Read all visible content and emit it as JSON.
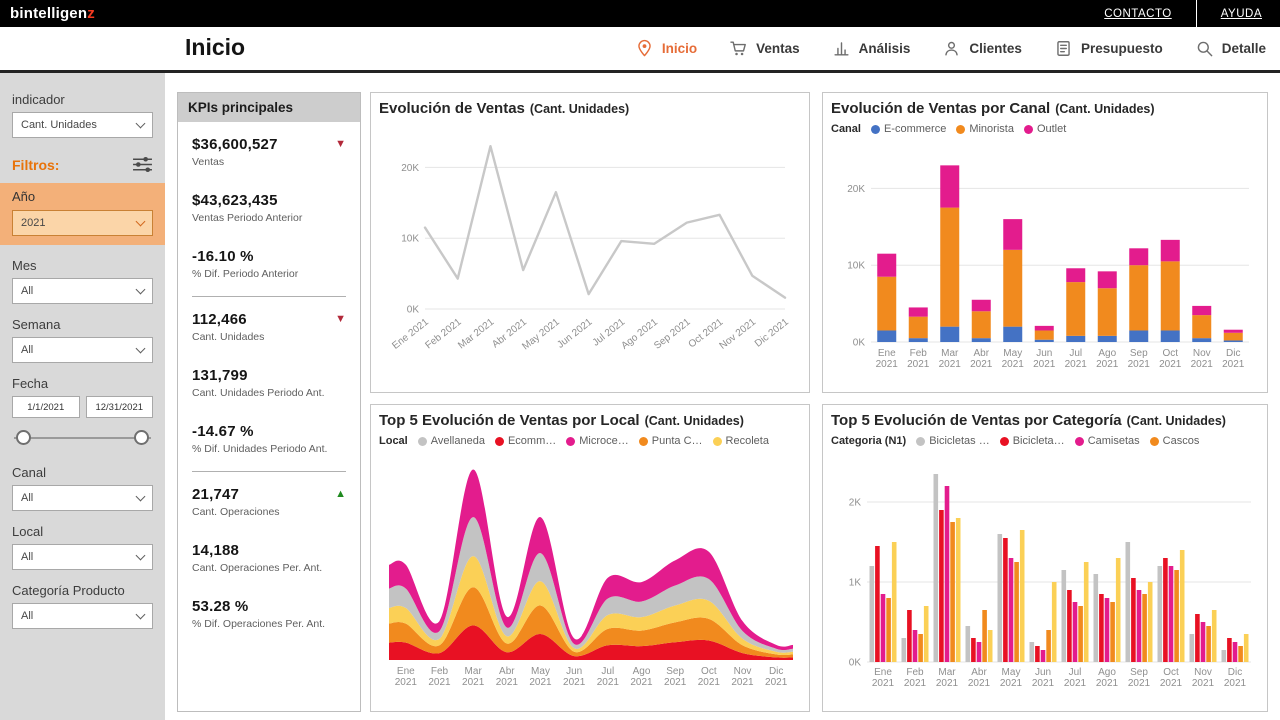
{
  "topbar": {
    "logo_b": "b",
    "logo_mid": "intelligen",
    "logo_z": "z",
    "contact": "CONTACTO",
    "help": "AYUDA"
  },
  "header": {
    "title": "Inicio",
    "nav": [
      {
        "label": "Inicio",
        "icon": "location-pin",
        "active": true
      },
      {
        "label": "Ventas",
        "icon": "cart",
        "active": false
      },
      {
        "label": "Análisis",
        "icon": "bar-chart",
        "active": false
      },
      {
        "label": "Clientes",
        "icon": "person",
        "active": false
      },
      {
        "label": "Presupuesto",
        "icon": "clipboard",
        "active": false
      },
      {
        "label": "Detalle",
        "icon": "search",
        "active": false
      }
    ]
  },
  "sidebar": {
    "indicator_label": "indicador",
    "indicator_value": "Cant. Unidades",
    "filters_title": "Filtros:",
    "year_label": "Año",
    "year_value": "2021",
    "month_label": "Mes",
    "month_value": "All",
    "week_label": "Semana",
    "week_value": "All",
    "date_label": "Fecha",
    "date_from": "1/1/2021",
    "date_to": "12/31/2021",
    "channel_label": "Canal",
    "channel_value": "All",
    "local_label": "Local",
    "local_value": "All",
    "category_label": "Categoría Producto",
    "category_value": "All"
  },
  "kpis": {
    "header": "KPIs principales",
    "items": [
      {
        "value": "$36,600,527",
        "label": "Ventas",
        "arrow": "down"
      },
      {
        "value": "$43,623,435",
        "label": "Ventas Periodo Anterior"
      },
      {
        "value": "-16.10 %",
        "label": "% Dif. Periodo Anterior",
        "divider_after": true
      },
      {
        "value": "112,466",
        "label": "Cant. Unidades",
        "arrow": "down"
      },
      {
        "value": "131,799",
        "label": "Cant. Unidades Periodo Ant."
      },
      {
        "value": "-14.67 %",
        "label": "% Dif. Unidades Periodo Ant.",
        "divider_after": true
      },
      {
        "value": "21,747",
        "label": "Cant. Operaciones",
        "arrow": "up"
      },
      {
        "value": "14,188",
        "label": "Cant. Operaciones Per. Ant."
      },
      {
        "value": "53.28 %",
        "label": "% Dif. Operaciones Per. Ant."
      }
    ]
  },
  "colors": {
    "accent_orange": "#e66c37",
    "down_red": "#b2293a",
    "up_green": "#1f8a1f"
  },
  "chart_data": [
    {
      "type": "line",
      "title": "Evolución de Ventas",
      "subtitle": "(Cant. Unidades)",
      "categories": [
        "Ene 2021",
        "Feb 2021",
        "Mar 2021",
        "Abr 2021",
        "May 2021",
        "Jun 2021",
        "Jul 2021",
        "Ago 2021",
        "Sep 2021",
        "Oct 2021",
        "Nov 2021",
        "Dic 2021"
      ],
      "values": [
        11500,
        4300,
        23000,
        5500,
        16500,
        2100,
        9600,
        9200,
        12200,
        13300,
        4700,
        1600
      ],
      "ylim": [
        0,
        25000
      ],
      "yticks": [
        0,
        10000,
        20000
      ],
      "ytick_labels": [
        "0K",
        "10K",
        "20K"
      ],
      "line_color": "#c8c8c8",
      "grid": true,
      "legend": "none"
    },
    {
      "type": "stacked-bar",
      "title": "Evolución de Ventas por Canal",
      "subtitle": "(Cant. Unidades)",
      "legend_title": "Canal",
      "legend_position": "top",
      "categories": [
        "Ene 2021",
        "Feb 2021",
        "Mar 2021",
        "Abr 2021",
        "May 2021",
        "Jun 2021",
        "Jul 2021",
        "Ago 2021",
        "Sep 2021",
        "Oct 2021",
        "Nov 2021",
        "Dic 2021"
      ],
      "series": [
        {
          "name": "E-commerce",
          "color": "#4472c4",
          "values": [
            1500,
            500,
            2000,
            500,
            2000,
            300,
            800,
            800,
            1500,
            1500,
            500,
            200
          ]
        },
        {
          "name": "Minorista",
          "color": "#f18a1e",
          "values": [
            7000,
            2800,
            15500,
            3500,
            10000,
            1200,
            7000,
            6200,
            8500,
            9000,
            3000,
            1000
          ]
        },
        {
          "name": "Outlet",
          "color": "#e31c8d",
          "values": [
            3000,
            1200,
            5500,
            1500,
            4000,
            600,
            1800,
            2200,
            2200,
            2800,
            1200,
            400
          ]
        }
      ],
      "ylim": [
        0,
        25000
      ],
      "yticks": [
        0,
        10000,
        20000
      ],
      "ytick_labels": [
        "0K",
        "10K",
        "20K"
      ],
      "grid": true
    },
    {
      "type": "stream",
      "title": "Top 5 Evolución de Ventas por Local",
      "subtitle": "(Cant. Unidades)",
      "legend_title": "Local",
      "legend_position": "top",
      "categories": [
        "Ene 2021",
        "Feb 2021",
        "Mar 2021",
        "Abr 2021",
        "May 2021",
        "Jun 2021",
        "Jul 2021",
        "Ago 2021",
        "Sep 2021",
        "Oct 2021",
        "Nov 2021",
        "Dic 2021"
      ],
      "series": [
        {
          "name": "Avellaneda",
          "color": "#c3c3c3",
          "values": [
            450,
            180,
            900,
            200,
            650,
            100,
            380,
            360,
            460,
            500,
            180,
            70
          ]
        },
        {
          "name": "Ecomm…",
          "color": "#e81123",
          "values": [
            400,
            160,
            800,
            180,
            600,
            90,
            340,
            320,
            410,
            450,
            160,
            60
          ]
        },
        {
          "name": "Microce…",
          "color": "#e31c8d",
          "values": [
            550,
            230,
            1100,
            250,
            830,
            130,
            480,
            450,
            580,
            630,
            230,
            90
          ]
        },
        {
          "name": "Punta C…",
          "color": "#f18a1e",
          "values": [
            440,
            180,
            880,
            200,
            660,
            100,
            380,
            360,
            460,
            500,
            180,
            70
          ]
        },
        {
          "name": "Recoleta",
          "color": "#fbd056",
          "values": [
            360,
            150,
            720,
            170,
            560,
            80,
            320,
            310,
            390,
            420,
            150,
            60
          ]
        }
      ],
      "stack_order": [
        1,
        3,
        4,
        0,
        2
      ],
      "grid": false
    },
    {
      "type": "grouped-bar",
      "title": "Top 5 Evolución de Ventas por Categoría",
      "subtitle": "(Cant. Unidades)",
      "legend_title": "Categoria (N1)",
      "legend_position": "top",
      "categories": [
        "Ene 2021",
        "Feb 2021",
        "Mar 2021",
        "Abr 2021",
        "May 2021",
        "Jun 2021",
        "Jul 2021",
        "Ago 2021",
        "Sep 2021",
        "Oct 2021",
        "Nov 2021",
        "Dic 2021"
      ],
      "series": [
        {
          "name": "Bicicletas …",
          "color": "#c3c3c3",
          "values": [
            1200,
            300,
            2350,
            450,
            1600,
            250,
            1150,
            1100,
            1500,
            1200,
            350,
            150
          ]
        },
        {
          "name": "Bicicleta…",
          "color": "#e81123",
          "values": [
            1450,
            650,
            1900,
            300,
            1550,
            200,
            900,
            850,
            1050,
            1300,
            600,
            300
          ]
        },
        {
          "name": "Camisetas",
          "color": "#e31c8d",
          "values": [
            850,
            400,
            2200,
            250,
            1300,
            150,
            750,
            800,
            900,
            1200,
            500,
            250
          ]
        },
        {
          "name": "Cascos",
          "color": "#f18a1e",
          "values": [
            800,
            350,
            1750,
            650,
            1250,
            400,
            700,
            750,
            850,
            1150,
            450,
            200
          ]
        },
        {
          "name": "",
          "color": "#fbd056",
          "values": [
            1500,
            700,
            1800,
            400,
            1650,
            1000,
            1250,
            1300,
            1000,
            1400,
            650,
            350
          ]
        }
      ],
      "ylim": [
        0,
        2500
      ],
      "yticks": [
        0,
        1000,
        2000
      ],
      "ytick_labels": [
        "0K",
        "1K",
        "2K"
      ],
      "grid": true
    }
  ]
}
